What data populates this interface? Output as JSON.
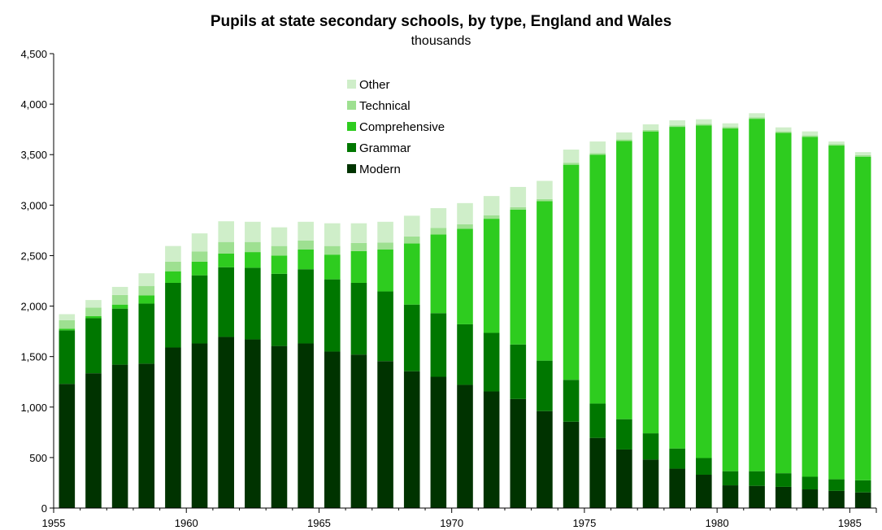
{
  "chart_data": {
    "type": "bar",
    "stacked": true,
    "title": "Pupils at state secondary schools, by type, England and Wales",
    "subtitle": "thousands",
    "xlabel": "",
    "ylabel": "",
    "ylim": [
      0,
      4500
    ],
    "y_ticks": [
      "0",
      "500",
      "1,000",
      "1,500",
      "2,000",
      "2,500",
      "3,000",
      "3,500",
      "4,000",
      "4,500"
    ],
    "x_tick_labels": [
      "1955",
      "1960",
      "1965",
      "1970",
      "1975",
      "1980",
      "1985"
    ],
    "categories": [
      1955,
      1956,
      1957,
      1958,
      1959,
      1960,
      1961,
      1962,
      1963,
      1964,
      1965,
      1966,
      1967,
      1968,
      1969,
      1970,
      1971,
      1972,
      1973,
      1974,
      1975,
      1976,
      1977,
      1978,
      1979,
      1980,
      1981,
      1982,
      1983,
      1984,
      1985
    ],
    "legend_position": "upper-center",
    "series": [
      {
        "name": "Modern",
        "color": "#003300",
        "values": [
          1230,
          1335,
          1420,
          1430,
          1590,
          1630,
          1695,
          1670,
          1605,
          1630,
          1550,
          1520,
          1455,
          1355,
          1300,
          1220,
          1155,
          1080,
          960,
          855,
          695,
          580,
          480,
          390,
          330,
          225,
          220,
          210,
          185,
          170,
          155
        ]
      },
      {
        "name": "Grammar",
        "color": "#007700",
        "values": [
          530,
          545,
          555,
          595,
          640,
          675,
          690,
          710,
          715,
          735,
          715,
          710,
          690,
          660,
          630,
          600,
          580,
          540,
          500,
          415,
          340,
          300,
          260,
          200,
          165,
          140,
          145,
          135,
          125,
          115,
          120
        ]
      },
      {
        "name": "Comprehensive",
        "color": "#2ecc1f",
        "values": [
          15,
          20,
          40,
          80,
          115,
          135,
          135,
          155,
          180,
          195,
          245,
          315,
          415,
          605,
          780,
          945,
          1130,
          1335,
          1580,
          2130,
          2465,
          2755,
          2990,
          3185,
          3295,
          3395,
          3490,
          3370,
          3365,
          3305,
          3205
        ]
      },
      {
        "name": "Technical",
        "color": "#9ee091",
        "values": [
          85,
          85,
          95,
          95,
          95,
          100,
          115,
          100,
          95,
          90,
          85,
          80,
          70,
          70,
          65,
          45,
          35,
          25,
          20,
          20,
          15,
          15,
          15,
          15,
          15,
          15,
          15,
          15,
          15,
          15,
          15
        ]
      },
      {
        "name": "Other",
        "color": "#cfeec9",
        "values": [
          60,
          75,
          80,
          125,
          155,
          180,
          205,
          200,
          185,
          185,
          225,
          195,
          205,
          205,
          195,
          210,
          190,
          200,
          180,
          130,
          115,
          70,
          55,
          50,
          45,
          35,
          40,
          40,
          40,
          25,
          30
        ]
      }
    ]
  }
}
